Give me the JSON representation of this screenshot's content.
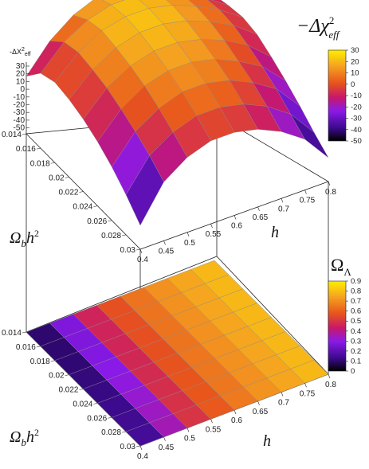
{
  "chart_data": [
    {
      "type": "surface3d",
      "title": "",
      "zlabel": "-ΔX²eff",
      "xlabel": "h",
      "ylabel": "Ωbh²",
      "x_ticks": [
        "0.4",
        "0.45",
        "0.5",
        "0.55",
        "0.6",
        "0.65",
        "0.7",
        "0.75",
        "0.8"
      ],
      "y_ticks": [
        "0.014",
        "0.016",
        "0.018",
        "0.02",
        "0.022",
        "0.024",
        "0.026",
        "0.028",
        "0.03"
      ],
      "z_ticks": [
        "30",
        "20",
        "10",
        "0",
        "-10",
        "-20",
        "-30",
        "-40",
        "-50"
      ],
      "zlim": [
        -50,
        30
      ],
      "x": [
        0.4,
        0.45,
        0.5,
        0.55,
        0.6,
        0.65,
        0.7,
        0.75,
        0.8
      ],
      "y": [
        0.014,
        0.016,
        0.018,
        0.02,
        0.022,
        0.024,
        0.026,
        0.028,
        0.03
      ],
      "z": [
        [
          -25,
          -5,
          8,
          15,
          16,
          12,
          5,
          -5,
          -15
        ],
        [
          -12,
          5,
          15,
          20,
          20,
          16,
          9,
          0,
          -12
        ],
        [
          -8,
          8,
          18,
          22,
          22,
          18,
          11,
          2,
          -10
        ],
        [
          -10,
          6,
          16,
          21,
          21,
          17,
          10,
          1,
          -12
        ],
        [
          -14,
          3,
          13,
          18,
          18,
          14,
          7,
          -3,
          -18
        ],
        [
          -20,
          -2,
          9,
          14,
          14,
          10,
          2,
          -8,
          -25
        ],
        [
          -28,
          -8,
          3,
          9,
          9,
          5,
          -3,
          -14,
          -33
        ],
        [
          -38,
          -15,
          -4,
          2,
          2,
          -2,
          -10,
          -22,
          -42
        ],
        [
          -50,
          -24,
          -12,
          -6,
          -6,
          -10,
          -18,
          -30,
          -50
        ]
      ],
      "colorbar": {
        "label": "−Δχ²eff",
        "ticks": [
          "30",
          "20",
          "10",
          "0",
          "-10",
          "-20",
          "-30",
          "-40",
          "-50"
        ],
        "range": [
          -50,
          30
        ]
      }
    },
    {
      "type": "heatmap",
      "title": "",
      "xlabel": "h",
      "ylabel": "Ωbh²",
      "x_ticks": [
        "0.4",
        "0.45",
        "0.5",
        "0.55",
        "0.6",
        "0.65",
        "0.7",
        "0.75",
        "0.8"
      ],
      "y_ticks": [
        "0.014",
        "0.016",
        "0.018",
        "0.02",
        "0.022",
        "0.024",
        "0.026",
        "0.028",
        "0.03"
      ],
      "x": [
        0.4,
        0.45,
        0.5,
        0.55,
        0.6,
        0.65,
        0.7,
        0.75,
        0.8
      ],
      "y": [
        0.014,
        0.016,
        0.018,
        0.02,
        0.022,
        0.024,
        0.026,
        0.028,
        0.03
      ],
      "z": [
        [
          0.05,
          0.15,
          0.4,
          0.52,
          0.61,
          0.68,
          0.73,
          0.77,
          0.8
        ],
        [
          0.05,
          0.15,
          0.4,
          0.52,
          0.61,
          0.68,
          0.73,
          0.77,
          0.8
        ],
        [
          0.05,
          0.15,
          0.4,
          0.52,
          0.61,
          0.68,
          0.73,
          0.77,
          0.8
        ],
        [
          0.05,
          0.17,
          0.41,
          0.52,
          0.61,
          0.68,
          0.73,
          0.77,
          0.8
        ],
        [
          0.05,
          0.18,
          0.42,
          0.53,
          0.61,
          0.68,
          0.73,
          0.77,
          0.8
        ],
        [
          0.05,
          0.2,
          0.43,
          0.53,
          0.62,
          0.68,
          0.73,
          0.77,
          0.8
        ],
        [
          0.05,
          0.22,
          0.44,
          0.54,
          0.62,
          0.68,
          0.73,
          0.77,
          0.8
        ],
        [
          0.05,
          0.24,
          0.45,
          0.54,
          0.62,
          0.68,
          0.73,
          0.77,
          0.8
        ],
        [
          0.05,
          0.26,
          0.46,
          0.55,
          0.63,
          0.69,
          0.73,
          0.77,
          0.8
        ]
      ],
      "colorbar": {
        "label": "ΩΛ",
        "ticks": [
          "0.9",
          "0.8",
          "0.7",
          "0.6",
          "0.5",
          "0.4",
          "0.3",
          "0.2",
          "0.1",
          "0"
        ],
        "range": [
          0,
          0.9
        ]
      }
    }
  ]
}
